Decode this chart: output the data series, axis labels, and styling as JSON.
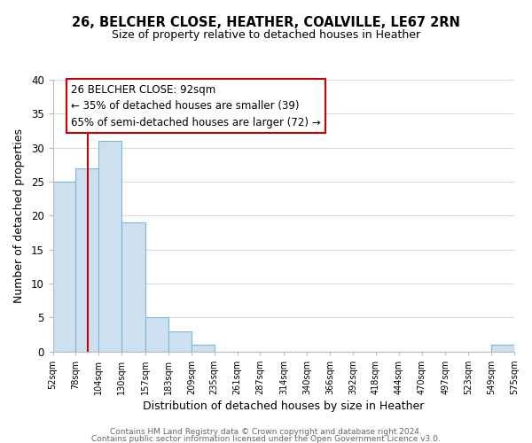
{
  "title": "26, BELCHER CLOSE, HEATHER, COALVILLE, LE67 2RN",
  "subtitle": "Size of property relative to detached houses in Heather",
  "xlabel": "Distribution of detached houses by size in Heather",
  "ylabel": "Number of detached properties",
  "bar_edges": [
    52,
    78,
    104,
    130,
    157,
    183,
    209,
    235,
    261,
    287,
    314,
    340,
    366,
    392,
    418,
    444,
    470,
    497,
    523,
    549,
    575
  ],
  "bar_heights": [
    25,
    27,
    31,
    19,
    5,
    3,
    1,
    0,
    0,
    0,
    0,
    0,
    0,
    0,
    0,
    0,
    0,
    0,
    0,
    1
  ],
  "bar_color": "#cce0f0",
  "bar_edgecolor": "#7ab8d8",
  "property_line_x": 92,
  "property_line_color": "#cc0000",
  "ylim": [
    0,
    40
  ],
  "annotation_line1": "26 BELCHER CLOSE: 92sqm",
  "annotation_line2": "← 35% of detached houses are smaller (39)",
  "annotation_line3": "65% of semi-detached houses are larger (72) →",
  "footer_line1": "Contains HM Land Registry data © Crown copyright and database right 2024.",
  "footer_line2": "Contains public sector information licensed under the Open Government Licence v3.0.",
  "tick_labels": [
    "52sqm",
    "78sqm",
    "104sqm",
    "130sqm",
    "157sqm",
    "183sqm",
    "209sqm",
    "235sqm",
    "261sqm",
    "287sqm",
    "314sqm",
    "340sqm",
    "366sqm",
    "392sqm",
    "418sqm",
    "444sqm",
    "470sqm",
    "497sqm",
    "523sqm",
    "549sqm",
    "575sqm"
  ],
  "background_color": "#ffffff",
  "grid_color": "#d0dce8"
}
